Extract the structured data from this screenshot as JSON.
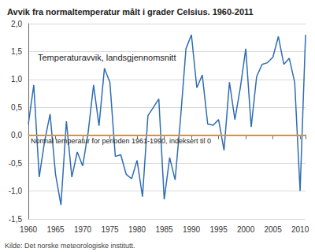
{
  "chart_data": {
    "type": "line",
    "title": "Avvik fra normaltemperatur målt i grader Celsius. 1960-2011",
    "source": "Kilde: Det norske meteorologiske institutt.",
    "x": [
      1960,
      1961,
      1962,
      1963,
      1964,
      1965,
      1966,
      1967,
      1968,
      1969,
      1970,
      1971,
      1972,
      1973,
      1974,
      1975,
      1976,
      1977,
      1978,
      1979,
      1980,
      1981,
      1982,
      1983,
      1984,
      1985,
      1986,
      1987,
      1988,
      1989,
      1990,
      1991,
      1992,
      1993,
      1994,
      1995,
      1996,
      1997,
      1998,
      1999,
      2000,
      2001,
      2002,
      2003,
      2004,
      2005,
      2006,
      2007,
      2008,
      2009,
      2010,
      2011
    ],
    "series": [
      {
        "name": "Temperaturavvik, landsgjennomsnitt",
        "color": "#2e6db4",
        "values": [
          0.2,
          0.9,
          -0.75,
          -0.1,
          0.38,
          -0.7,
          -1.25,
          0.25,
          -0.75,
          -0.3,
          -0.55,
          0.05,
          0.9,
          0.17,
          1.2,
          0.95,
          -0.38,
          -0.35,
          -0.7,
          -0.78,
          -0.45,
          -1.1,
          0.35,
          0.5,
          0.65,
          -1.15,
          -0.4,
          -0.8,
          0.3,
          1.55,
          1.8,
          0.85,
          1.08,
          0.2,
          0.18,
          0.28,
          -0.27,
          0.95,
          0.28,
          0.85,
          1.55,
          0.15,
          1.05,
          1.27,
          1.3,
          1.4,
          1.77,
          1.27,
          1.38,
          0.95,
          -1.0,
          1.8
        ]
      }
    ],
    "reference_line": {
      "value": 0,
      "label": "Normal temperatur for perioden 1961-1990, indeksert til 0",
      "color": "#f28a1d"
    },
    "xlim": [
      1960,
      2011
    ],
    "xticks": [
      1960,
      1965,
      1970,
      1975,
      1980,
      1985,
      1990,
      1995,
      2000,
      2005,
      2010
    ],
    "ylim": [
      -1.5,
      2
    ],
    "yticks": [
      {
        "value": -1.5,
        "label": "-1,5"
      },
      {
        "value": -1,
        "label": "-1,0"
      },
      {
        "value": -0.5,
        "label": "-0,5"
      },
      {
        "value": 0,
        "label": "0,0"
      },
      {
        "value": 0.5,
        "label": "0,5"
      },
      {
        "value": 1,
        "label": "1,0"
      },
      {
        "value": 1.5,
        "label": "1,5"
      },
      {
        "value": 2,
        "label": "2,0"
      }
    ],
    "grid": true
  }
}
